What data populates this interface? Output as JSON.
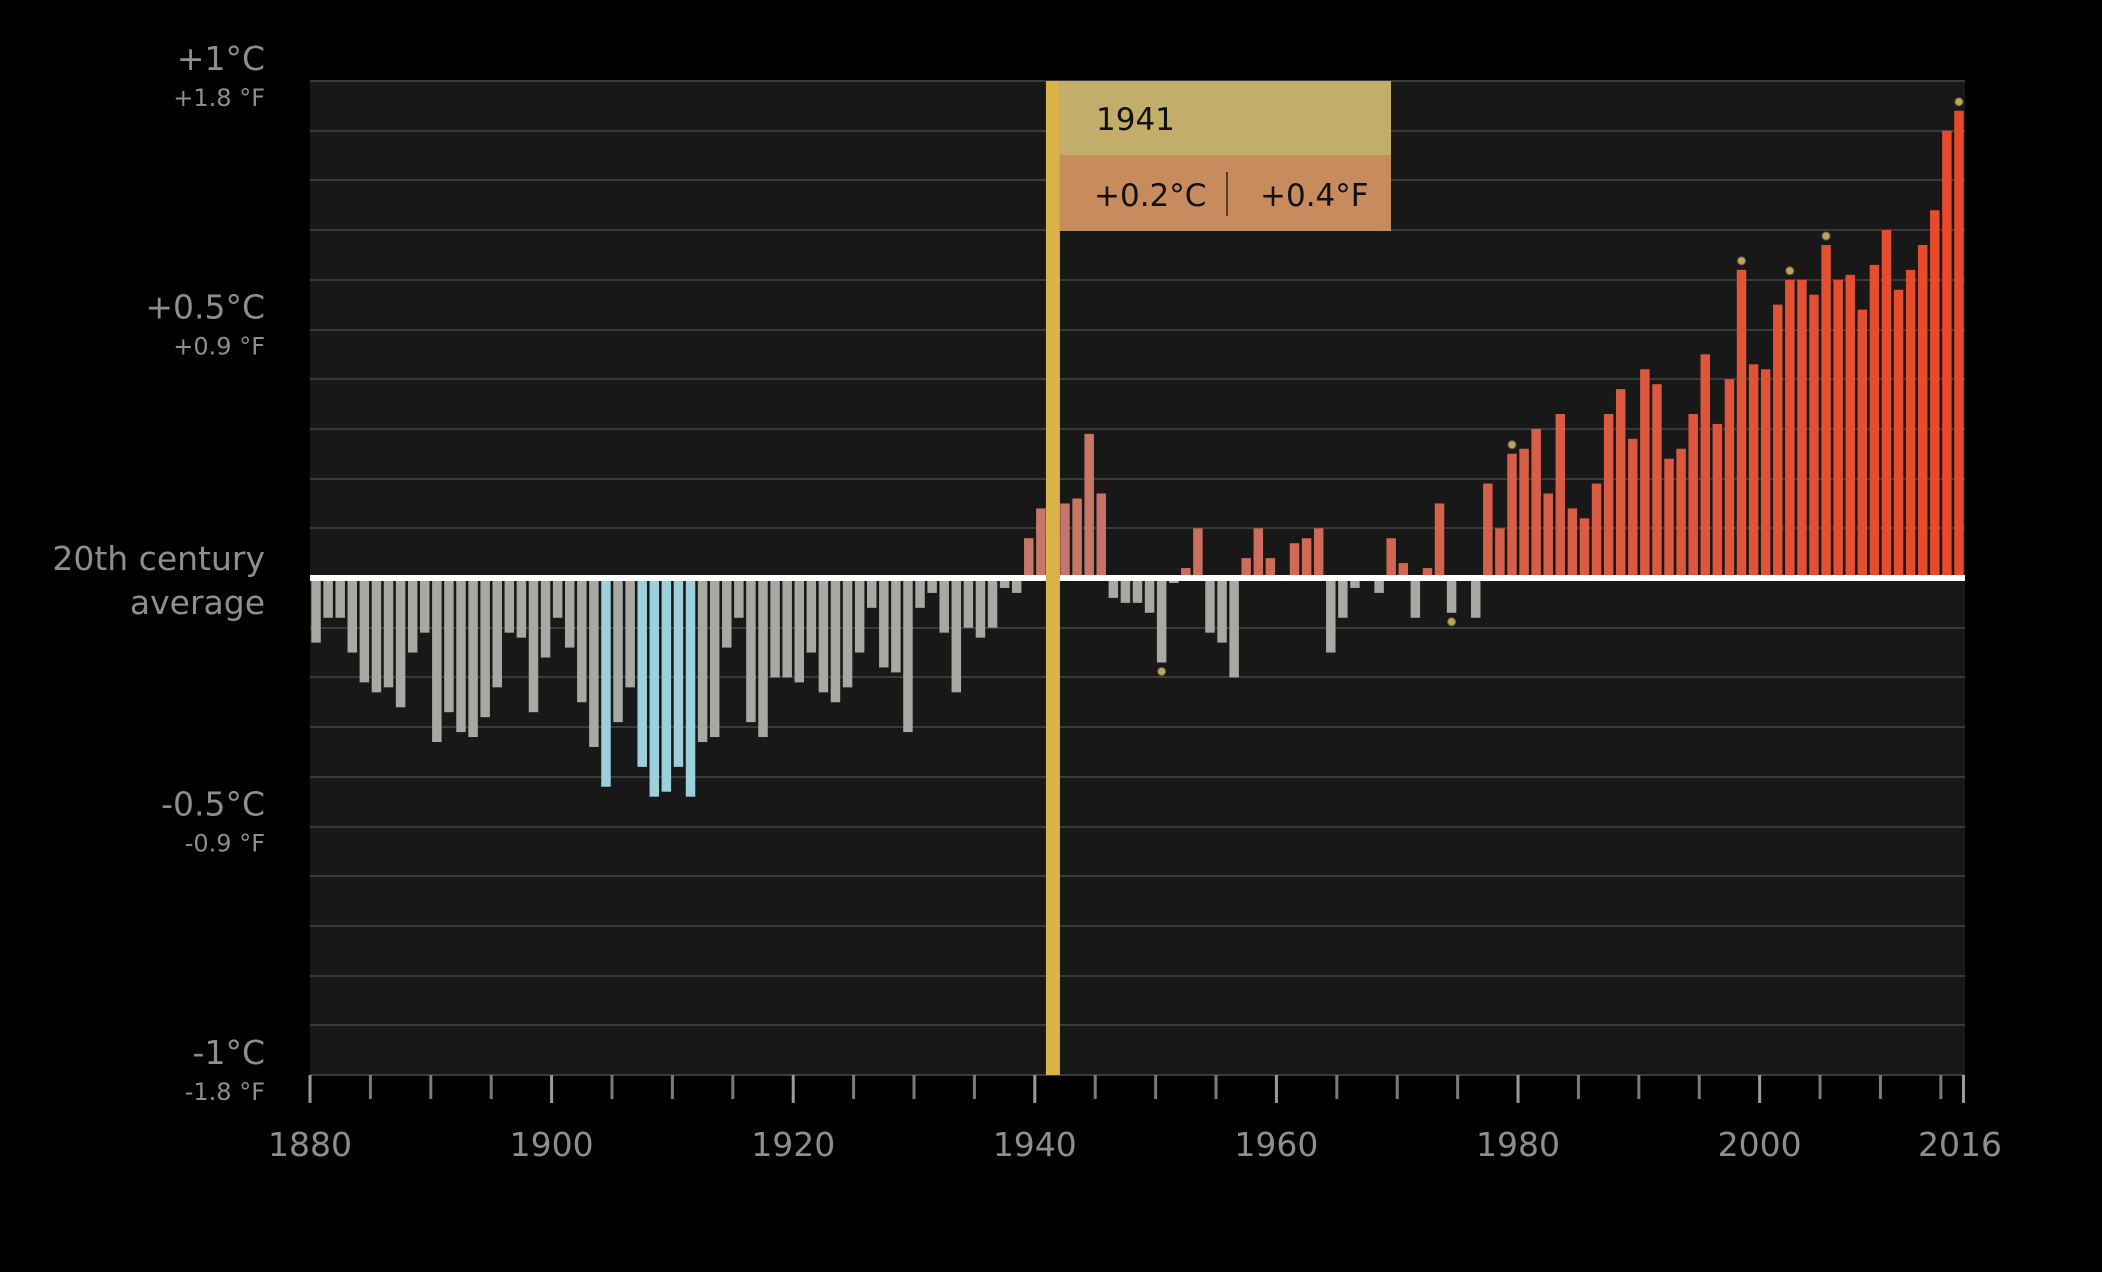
{
  "chart_data": {
    "type": "bar",
    "title": "",
    "xlabel": "",
    "ylabel": "",
    "ylim": [
      -1,
      1
    ],
    "grid": true,
    "baseline_label": [
      "20th century",
      "average"
    ],
    "y_ticks": [
      {
        "value": 1,
        "c": "+1°C",
        "f": "+1.8 °F"
      },
      {
        "value": 0.5,
        "c": "+0.5°C",
        "f": "+0.9 °F"
      },
      {
        "value": -0.5,
        "c": "-0.5°C",
        "f": "-0.9 °F"
      },
      {
        "value": -1,
        "c": "-1°C",
        "f": "-1.8 °F"
      }
    ],
    "x_tick_labels": [
      "1880",
      "1900",
      "1920",
      "1940",
      "1960",
      "1980",
      "2000",
      "2016"
    ],
    "x_tick_values": [
      1880,
      1900,
      1920,
      1940,
      1960,
      1980,
      2000,
      2016
    ],
    "years": [
      1880,
      1881,
      1882,
      1883,
      1884,
      1885,
      1886,
      1887,
      1888,
      1889,
      1890,
      1891,
      1892,
      1893,
      1894,
      1895,
      1896,
      1897,
      1898,
      1899,
      1900,
      1901,
      1902,
      1903,
      1904,
      1905,
      1906,
      1907,
      1908,
      1909,
      1910,
      1911,
      1912,
      1913,
      1914,
      1915,
      1916,
      1917,
      1918,
      1919,
      1920,
      1921,
      1922,
      1923,
      1924,
      1925,
      1926,
      1927,
      1928,
      1929,
      1930,
      1931,
      1932,
      1933,
      1934,
      1935,
      1936,
      1937,
      1938,
      1939,
      1940,
      1941,
      1942,
      1943,
      1944,
      1945,
      1946,
      1947,
      1948,
      1949,
      1950,
      1951,
      1952,
      1953,
      1954,
      1955,
      1956,
      1957,
      1958,
      1959,
      1960,
      1961,
      1962,
      1963,
      1964,
      1965,
      1966,
      1967,
      1968,
      1969,
      1970,
      1971,
      1972,
      1973,
      1974,
      1975,
      1976,
      1977,
      1978,
      1979,
      1980,
      1981,
      1982,
      1983,
      1984,
      1985,
      1986,
      1987,
      1988,
      1989,
      1990,
      1991,
      1992,
      1993,
      1994,
      1995,
      1996,
      1997,
      1998,
      1999,
      2000,
      2001,
      2002,
      2003,
      2004,
      2005,
      2006,
      2007,
      2008,
      2009,
      2010,
      2011,
      2012,
      2013,
      2014,
      2015,
      2016
    ],
    "values": [
      -0.13,
      -0.08,
      -0.08,
      -0.15,
      -0.21,
      -0.23,
      -0.22,
      -0.26,
      -0.15,
      -0.11,
      -0.33,
      -0.27,
      -0.31,
      -0.32,
      -0.28,
      -0.22,
      -0.11,
      -0.12,
      -0.27,
      -0.16,
      -0.08,
      -0.14,
      -0.25,
      -0.34,
      -0.42,
      -0.29,
      -0.22,
      -0.38,
      -0.44,
      -0.43,
      -0.38,
      -0.44,
      -0.33,
      -0.32,
      -0.14,
      -0.08,
      -0.29,
      -0.32,
      -0.2,
      -0.2,
      -0.21,
      -0.15,
      -0.23,
      -0.25,
      -0.22,
      -0.15,
      -0.06,
      -0.18,
      -0.19,
      -0.31,
      -0.06,
      -0.03,
      -0.11,
      -0.23,
      -0.1,
      -0.12,
      -0.1,
      -0.02,
      -0.03,
      0.08,
      0.14,
      0.2,
      0.15,
      0.16,
      0.29,
      0.17,
      -0.04,
      -0.05,
      -0.05,
      -0.07,
      -0.17,
      -0.01,
      0.02,
      0.1,
      -0.11,
      -0.13,
      -0.2,
      0.04,
      0.1,
      0.04,
      0.0,
      0.07,
      0.08,
      0.1,
      -0.15,
      -0.08,
      -0.02,
      0.0,
      -0.03,
      0.08,
      0.03,
      -0.08,
      0.02,
      0.15,
      -0.07,
      0.0,
      -0.08,
      0.19,
      0.1,
      0.25,
      0.26,
      0.3,
      0.17,
      0.33,
      0.14,
      0.12,
      0.19,
      0.33,
      0.38,
      0.28,
      0.42,
      0.39,
      0.24,
      0.26,
      0.33,
      0.45,
      0.31,
      0.4,
      0.62,
      0.43,
      0.42,
      0.55,
      0.6,
      0.6,
      0.57,
      0.67,
      0.6,
      0.61,
      0.54,
      0.63,
      0.7,
      0.58,
      0.62,
      0.67,
      0.74,
      0.9,
      0.94
    ],
    "records": [
      1998,
      2002,
      2005,
      2016
    ],
    "markers": [
      1950,
      1974,
      1979
    ],
    "highlight": {
      "year": "1941",
      "celsius": "+0.2°C",
      "fahrenheit": "+0.4°F"
    },
    "colors": {
      "background": "#000000",
      "plot_area": "#181818",
      "gridline": "#3a3a3a",
      "baseline": "#ffffff",
      "neg_bar": "#a9a9a3",
      "cold_bar": "#9ed0dc",
      "warm_bar_low": "#c5776a",
      "warm_bar_high": "#e8492a",
      "highlight_line": "#dbb24a",
      "tooltip_header": "#c3ad6a",
      "tooltip_body": "#c88b5e",
      "marker": "#b9a661"
    }
  }
}
